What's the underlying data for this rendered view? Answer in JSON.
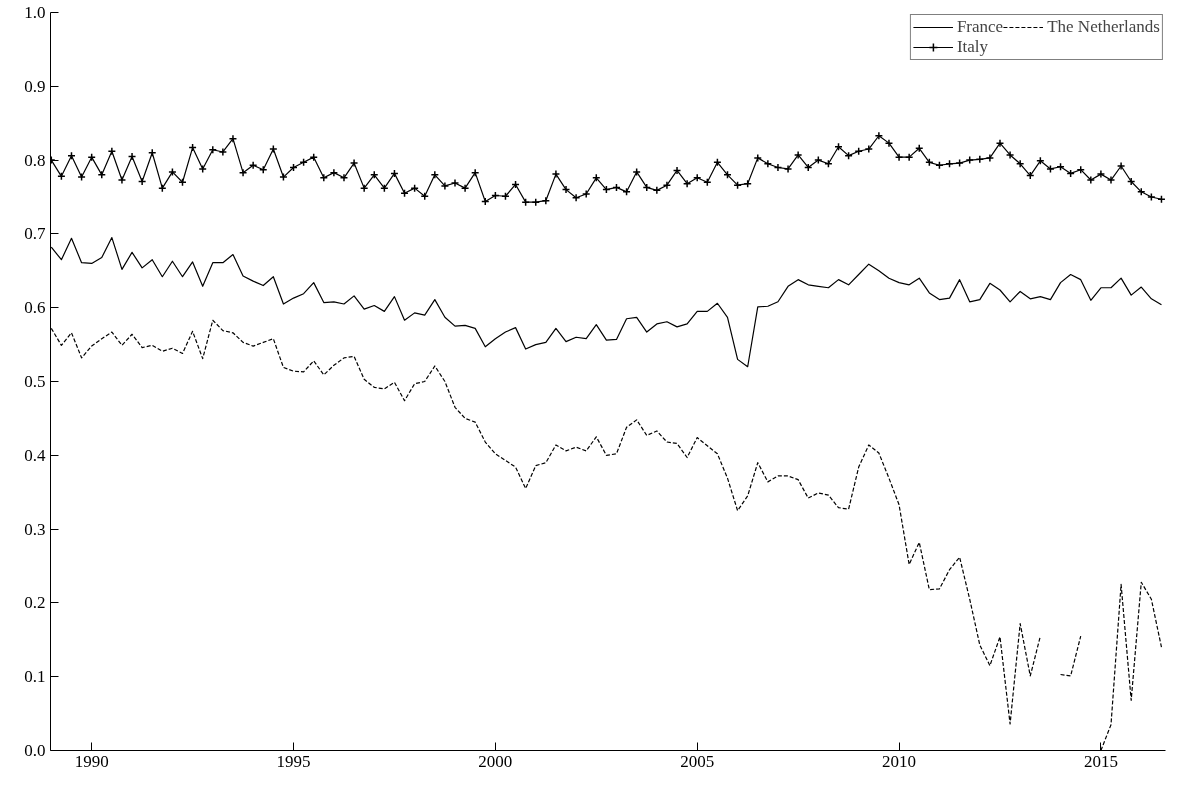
{
  "chart_data": {
    "type": "line",
    "x": [
      1989.0,
      1989.25,
      1989.5,
      1989.75,
      1990.0,
      1990.25,
      1990.5,
      1990.75,
      1991.0,
      1991.25,
      1991.5,
      1991.75,
      1992.0,
      1992.25,
      1992.5,
      1992.75,
      1993.0,
      1993.25,
      1993.5,
      1993.75,
      1994.0,
      1994.25,
      1994.5,
      1994.75,
      1995.0,
      1995.25,
      1995.5,
      1995.75,
      1996.0,
      1996.25,
      1996.5,
      1996.75,
      1997.0,
      1997.25,
      1997.5,
      1997.75,
      1998.0,
      1998.25,
      1998.5,
      1998.75,
      1999.0,
      1999.25,
      1999.5,
      1999.75,
      2000.0,
      2000.25,
      2000.5,
      2000.75,
      2001.0,
      2001.25,
      2001.5,
      2001.75,
      2002.0,
      2002.25,
      2002.5,
      2002.75,
      2003.0,
      2003.25,
      2003.5,
      2003.75,
      2004.0,
      2004.25,
      2004.5,
      2004.75,
      2005.0,
      2005.25,
      2005.5,
      2005.75,
      2006.0,
      2006.25,
      2006.5,
      2006.75,
      2007.0,
      2007.25,
      2007.5,
      2007.75,
      2008.0,
      2008.25,
      2008.5,
      2008.75,
      2009.0,
      2009.25,
      2009.5,
      2009.75,
      2010.0,
      2010.25,
      2010.5,
      2010.75,
      2011.0,
      2011.25,
      2011.5,
      2011.75,
      2012.0,
      2012.25,
      2012.5,
      2012.75,
      2013.0,
      2013.25,
      2013.5,
      2013.75,
      2014.0,
      2014.25,
      2014.5,
      2014.75,
      2015.0,
      2015.25,
      2015.5,
      2015.75,
      2016.0,
      2016.25,
      2016.5
    ],
    "series": [
      {
        "name": "France",
        "color": "#000000",
        "line_style": "solid",
        "marker": "none",
        "values": [
          0.682,
          0.665,
          0.694,
          0.661,
          0.66,
          0.668,
          0.695,
          0.652,
          0.675,
          0.654,
          0.665,
          0.642,
          0.663,
          0.642,
          0.662,
          0.629,
          0.661,
          0.661,
          0.672,
          0.643,
          0.636,
          0.63,
          0.642,
          0.605,
          0.613,
          0.619,
          0.634,
          0.607,
          0.608,
          0.605,
          0.616,
          0.598,
          0.603,
          0.595,
          0.615,
          0.583,
          0.593,
          0.59,
          0.611,
          0.587,
          0.575,
          0.576,
          0.572,
          0.547,
          0.558,
          0.567,
          0.573,
          0.544,
          0.55,
          0.553,
          0.572,
          0.554,
          0.56,
          0.558,
          0.577,
          0.556,
          0.557,
          0.585,
          0.587,
          0.567,
          0.578,
          0.581,
          0.574,
          0.578,
          0.595,
          0.595,
          0.606,
          0.587,
          0.53,
          0.52,
          0.601,
          0.602,
          0.608,
          0.629,
          0.638,
          0.631,
          0.629,
          0.627,
          0.638,
          0.631,
          0.645,
          0.659,
          0.65,
          0.64,
          0.634,
          0.631,
          0.64,
          0.62,
          0.611,
          0.613,
          0.638,
          0.608,
          0.611,
          0.633,
          0.624,
          0.608,
          0.622,
          0.612,
          0.615,
          0.611,
          0.634,
          0.645,
          0.638,
          0.61,
          0.627,
          0.627,
          0.64,
          0.617,
          0.628,
          0.612,
          0.604
        ]
      },
      {
        "name": "Italy",
        "color": "#000000",
        "line_style": "solid",
        "marker": "cross",
        "values": [
          0.8,
          0.778,
          0.806,
          0.777,
          0.804,
          0.78,
          0.812,
          0.773,
          0.805,
          0.771,
          0.81,
          0.762,
          0.784,
          0.77,
          0.817,
          0.788,
          0.814,
          0.811,
          0.829,
          0.783,
          0.793,
          0.787,
          0.815,
          0.777,
          0.79,
          0.797,
          0.804,
          0.776,
          0.783,
          0.776,
          0.796,
          0.762,
          0.78,
          0.762,
          0.782,
          0.755,
          0.762,
          0.751,
          0.78,
          0.765,
          0.769,
          0.762,
          0.783,
          0.744,
          0.752,
          0.751,
          0.767,
          0.743,
          0.743,
          0.745,
          0.781,
          0.76,
          0.749,
          0.754,
          0.776,
          0.76,
          0.763,
          0.757,
          0.784,
          0.763,
          0.759,
          0.766,
          0.786,
          0.768,
          0.776,
          0.77,
          0.797,
          0.78,
          0.766,
          0.768,
          0.803,
          0.795,
          0.79,
          0.788,
          0.807,
          0.79,
          0.8,
          0.795,
          0.818,
          0.806,
          0.812,
          0.815,
          0.833,
          0.823,
          0.804,
          0.804,
          0.816,
          0.797,
          0.793,
          0.795,
          0.796,
          0.8,
          0.801,
          0.803,
          0.823,
          0.807,
          0.795,
          0.779,
          0.799,
          0.788,
          0.791,
          0.782,
          0.787,
          0.773,
          0.781,
          0.773,
          0.792,
          0.771,
          0.757,
          0.75,
          0.747
        ]
      },
      {
        "name": "The Netherlands",
        "color": "#000000",
        "line_style": "dashed",
        "marker": "none",
        "values": [
          0.572,
          0.549,
          0.566,
          0.532,
          0.548,
          0.558,
          0.567,
          0.549,
          0.564,
          0.546,
          0.549,
          0.541,
          0.545,
          0.538,
          0.568,
          0.531,
          0.583,
          0.569,
          0.566,
          0.553,
          0.548,
          0.553,
          0.558,
          0.519,
          0.514,
          0.513,
          0.528,
          0.509,
          0.522,
          0.532,
          0.534,
          0.503,
          0.492,
          0.49,
          0.499,
          0.474,
          0.497,
          0.5,
          0.521,
          0.5,
          0.465,
          0.45,
          0.445,
          0.418,
          0.402,
          0.393,
          0.384,
          0.355,
          0.386,
          0.39,
          0.414,
          0.406,
          0.411,
          0.406,
          0.425,
          0.4,
          0.402,
          0.438,
          0.448,
          0.427,
          0.433,
          0.418,
          0.416,
          0.397,
          0.424,
          0.413,
          0.402,
          0.369,
          0.325,
          0.345,
          0.39,
          0.364,
          0.372,
          0.372,
          0.367,
          0.342,
          0.349,
          0.346,
          0.329,
          0.327,
          0.384,
          0.414,
          0.403,
          0.369,
          0.333,
          0.252,
          0.282,
          0.218,
          0.219,
          0.245,
          0.262,
          0.205,
          0.143,
          0.115,
          0.154,
          0.036,
          0.172,
          0.101,
          0.155,
          null,
          0.103,
          0.101,
          0.155,
          null,
          0.0,
          0.035,
          0.225,
          0.068,
          0.228,
          0.205,
          0.14
        ]
      }
    ],
    "xlim": [
      1988.98,
      2016.6
    ],
    "xticks": [
      1990,
      1995,
      2000,
      2005,
      2010,
      2015
    ],
    "ylim": [
      0.0,
      1.0
    ],
    "yticks": [
      {
        "value": 0.0,
        "label": "0.0"
      },
      {
        "value": 0.1,
        "label": "0.1"
      },
      {
        "value": 0.2,
        "label": "0.2"
      },
      {
        "value": 0.3,
        "label": "0.3"
      },
      {
        "value": 0.4,
        "label": "0.4"
      },
      {
        "value": 0.5,
        "label": "0.5"
      },
      {
        "value": 0.6,
        "label": "0.6"
      },
      {
        "value": 0.7,
        "label": "0.7"
      },
      {
        "value": 0.8,
        "label": "0.8"
      },
      {
        "value": 0.9,
        "label": "0.9"
      },
      {
        "value": 1.0,
        "label": "1.0"
      }
    ],
    "grid": false,
    "legend": "top right"
  }
}
